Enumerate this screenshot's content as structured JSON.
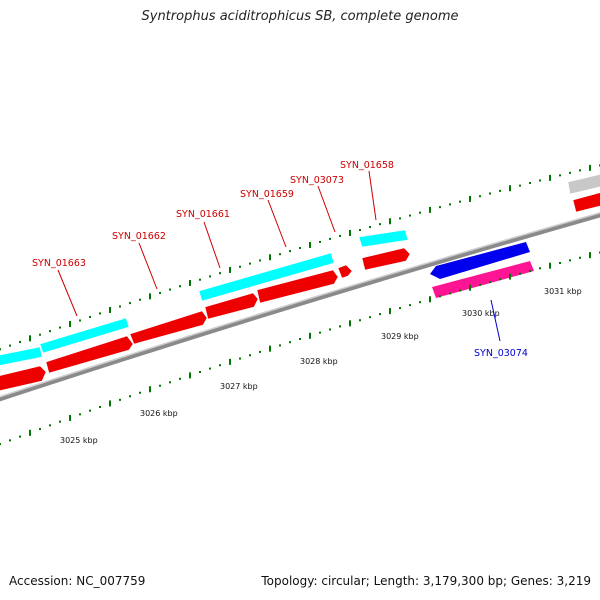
{
  "title": "Syntrophus aciditrophicus SB, complete genome",
  "footer": {
    "accession": "Accession: NC_007759",
    "summary": "Topology: circular; Length: 3,179,300 bp; Genes: 3,219"
  },
  "scale_labels": [
    "3025 kbp",
    "3026 kbp",
    "3027 kbp",
    "3028 kbp",
    "3029 kbp",
    "3030 kbp",
    "3031 kbp"
  ],
  "gene_labels": [
    {
      "text": "SYN_01663",
      "color": "#cc0000"
    },
    {
      "text": "SYN_01662",
      "color": "#cc0000"
    },
    {
      "text": "SYN_01661",
      "color": "#cc0000"
    },
    {
      "text": "SYN_01659",
      "color": "#cc0000"
    },
    {
      "text": "SYN_03073",
      "color": "#cc0000"
    },
    {
      "text": "SYN_01658",
      "color": "#cc0000"
    },
    {
      "text": "SYN_03074",
      "color": "#0000cc"
    }
  ],
  "colors": {
    "cds_forward": "#ee0000",
    "rna_forward": "#00ffff",
    "cds_reverse": "#0000ee",
    "rna_reverse": "#ff1493",
    "other": "#c8c8c8",
    "backbone": "#8a8a8a",
    "tick": "#007700"
  }
}
